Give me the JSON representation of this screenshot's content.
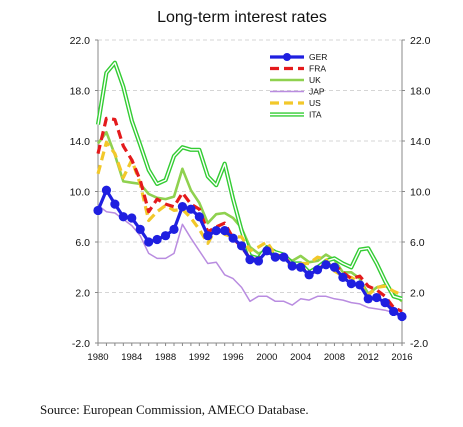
{
  "caption": "Source: European Commission, AMECO Database.",
  "chart_data": {
    "type": "line",
    "title": "Long-term interest rates",
    "xlabel": "",
    "ylabel": "",
    "ylim": [
      -2,
      22
    ],
    "xlim": [
      1980,
      2016
    ],
    "y_ticks": [
      "-2.0",
      "2.0",
      "6.0",
      "10.0",
      "14.0",
      "18.0",
      "22.0"
    ],
    "x_ticks": [
      "1980",
      "1984",
      "1988",
      "1992",
      "1996",
      "2000",
      "2004",
      "2008",
      "2012",
      "2016"
    ],
    "y_tick_values": [
      -2,
      2,
      6,
      10,
      14,
      18,
      22
    ],
    "x_tick_values": [
      1980,
      1984,
      1988,
      1992,
      1996,
      2000,
      2004,
      2008,
      2012,
      2016
    ],
    "grid": "horizontal dashed",
    "legend_position": "top-right",
    "x": [
      1980,
      1981,
      1982,
      1983,
      1984,
      1985,
      1986,
      1987,
      1988,
      1989,
      1990,
      1991,
      1992,
      1993,
      1994,
      1995,
      1996,
      1997,
      1998,
      1999,
      2000,
      2001,
      2002,
      2003,
      2004,
      2005,
      2006,
      2007,
      2008,
      2009,
      2010,
      2011,
      2012,
      2013,
      2014,
      2015,
      2016
    ],
    "series": [
      {
        "name": "GER",
        "color": "#1f1fe0",
        "style": "solid-markers",
        "values": [
          8.5,
          10.1,
          9.0,
          8.0,
          7.9,
          7.0,
          6.0,
          6.2,
          6.5,
          7.0,
          8.8,
          8.6,
          8.0,
          6.5,
          6.9,
          6.9,
          6.3,
          5.7,
          4.6,
          4.5,
          5.3,
          4.8,
          4.8,
          4.1,
          4.0,
          3.4,
          3.8,
          4.2,
          4.0,
          3.2,
          2.7,
          2.6,
          1.5,
          1.6,
          1.2,
          0.5,
          0.1
        ]
      },
      {
        "name": "FRA",
        "color": "#e41a1c",
        "style": "dashed",
        "values": [
          13.0,
          15.8,
          15.7,
          13.6,
          12.5,
          10.9,
          8.4,
          9.4,
          9.0,
          8.8,
          9.9,
          9.0,
          8.6,
          6.8,
          7.2,
          7.5,
          6.3,
          5.6,
          4.7,
          4.6,
          5.4,
          4.9,
          4.9,
          4.1,
          4.1,
          3.4,
          3.8,
          4.3,
          4.2,
          3.6,
          3.1,
          3.3,
          2.5,
          2.2,
          1.7,
          0.8,
          0.5
        ]
      },
      {
        "name": "UK",
        "color": "#8fd14f",
        "style": "solid",
        "values": [
          13.8,
          14.7,
          12.9,
          10.8,
          10.7,
          10.6,
          9.8,
          9.5,
          9.4,
          9.6,
          11.8,
          10.1,
          9.1,
          7.5,
          8.2,
          8.3,
          7.9,
          7.1,
          5.6,
          5.1,
          5.3,
          4.9,
          4.9,
          4.5,
          4.9,
          4.4,
          4.5,
          5.0,
          4.6,
          3.6,
          3.6,
          3.1,
          1.9,
          2.4,
          2.6,
          1.9,
          1.3
        ]
      },
      {
        "name": "JAP",
        "color": "#b98ce0",
        "style": "solid",
        "values": [
          8.9,
          8.4,
          8.3,
          7.8,
          7.3,
          6.5,
          5.1,
          4.7,
          4.7,
          5.1,
          7.4,
          6.3,
          5.3,
          4.3,
          4.4,
          3.4,
          3.1,
          2.4,
          1.3,
          1.7,
          1.7,
          1.3,
          1.3,
          1.0,
          1.5,
          1.4,
          1.7,
          1.7,
          1.5,
          1.4,
          1.2,
          1.1,
          0.8,
          0.7,
          0.6,
          0.4,
          0.0
        ]
      },
      {
        "name": "US",
        "color": "#f2c82a",
        "style": "dashed",
        "values": [
          11.4,
          13.9,
          13.0,
          11.1,
          12.5,
          10.6,
          7.7,
          8.4,
          8.9,
          8.5,
          8.6,
          7.9,
          7.0,
          5.9,
          7.1,
          6.6,
          6.4,
          6.4,
          5.3,
          5.6,
          6.0,
          5.0,
          4.6,
          4.0,
          4.3,
          4.3,
          4.8,
          4.6,
          3.7,
          3.3,
          3.2,
          2.8,
          1.8,
          2.4,
          2.5,
          2.1,
          1.8
        ]
      },
      {
        "name": "ITA",
        "color": "#33cc33",
        "style": "double",
        "values": [
          15.3,
          19.4,
          20.2,
          18.3,
          15.6,
          13.7,
          11.7,
          10.6,
          10.9,
          12.8,
          13.5,
          13.3,
          13.3,
          11.2,
          10.5,
          12.2,
          9.4,
          6.9,
          4.9,
          4.7,
          5.6,
          5.2,
          5.0,
          4.3,
          4.3,
          3.6,
          4.0,
          4.5,
          4.7,
          4.3,
          4.0,
          5.4,
          5.5,
          4.3,
          2.9,
          1.7,
          1.5
        ]
      }
    ]
  }
}
